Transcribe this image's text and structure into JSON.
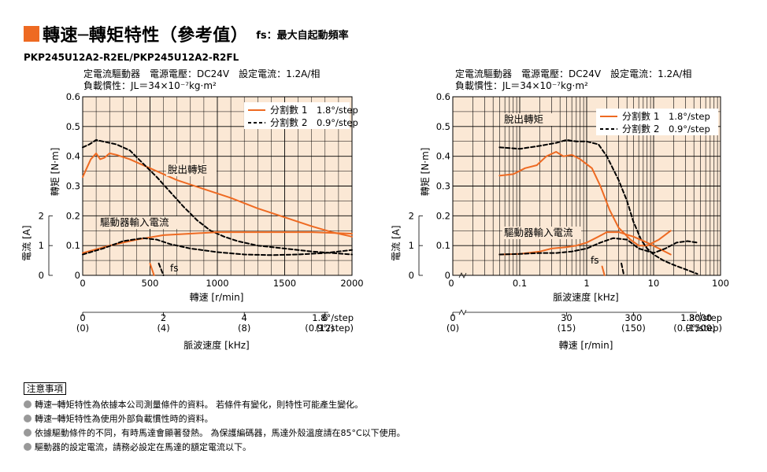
{
  "title": {
    "main": "轉速─轉矩特性（參考值）",
    "fs_note": "fs：最大自起動頻率"
  },
  "model": "PKP245U12A2-R2EL/PKP245U12A2-R2FL",
  "colors": {
    "orange": "#ee6a22",
    "bg": "#fbe8d5"
  },
  "chart_data": [
    {
      "type": "line",
      "conditions": [
        "定電流驅動器　電源電壓：DC24V　設定電流：1.2A/相",
        "負載慣性：JL＝34×10⁻⁷kg·m²"
      ],
      "xlabel": "轉速 [r/min]",
      "xlim": [
        0,
        2000
      ],
      "x_ticks": [
        "0",
        "500",
        "1000",
        "1500",
        "2000"
      ],
      "ylabel": "轉矩 [N·m]",
      "ylim": [
        0,
        0.6
      ],
      "y_ticks": [
        "0",
        "0.1",
        "0.2",
        "0.3",
        "0.4",
        "0.5",
        "0.6"
      ],
      "y2label": "電流 [A]",
      "y2_ticks": [
        "0",
        "1",
        "2"
      ],
      "legend": [
        {
          "label": "分割數 1",
          "value": "1.8°/step",
          "style": "solid"
        },
        {
          "label": "分割數 2",
          "value": "0.9°/step",
          "style": "dashed"
        }
      ],
      "annotations": {
        "pullout": "脫出轉矩",
        "current": "驅動器輸入電流",
        "fs": "fs"
      },
      "secondary_axis": {
        "label": "脈波速度 [kHz]",
        "ticks": [
          {
            "top": "0",
            "bottom": "(0)"
          },
          {
            "top": "2",
            "bottom": "(4)"
          },
          {
            "top": "4",
            "bottom": "(8)"
          },
          {
            "top": "6",
            "bottom": "(12)"
          }
        ],
        "unit_top": "1.8°/step",
        "unit_bottom": "(0.9°/step)"
      },
      "series": [
        {
          "kind": "torque",
          "style": "solid",
          "points": [
            [
              0,
              0.33
            ],
            [
              30,
              0.36
            ],
            [
              60,
              0.39
            ],
            [
              100,
              0.41
            ],
            [
              130,
              0.39
            ],
            [
              160,
              0.395
            ],
            [
              200,
              0.41
            ],
            [
              250,
              0.405
            ],
            [
              350,
              0.39
            ],
            [
              500,
              0.36
            ],
            [
              700,
              0.32
            ],
            [
              900,
              0.29
            ],
            [
              1100,
              0.26
            ],
            [
              1300,
              0.225
            ],
            [
              1500,
              0.195
            ],
            [
              1700,
              0.165
            ],
            [
              1850,
              0.145
            ],
            [
              2000,
              0.13
            ]
          ]
        },
        {
          "kind": "torque",
          "style": "dashed",
          "points": [
            [
              0,
              0.43
            ],
            [
              50,
              0.44
            ],
            [
              100,
              0.455
            ],
            [
              150,
              0.45
            ],
            [
              250,
              0.44
            ],
            [
              350,
              0.42
            ],
            [
              450,
              0.375
            ],
            [
              550,
              0.33
            ],
            [
              650,
              0.28
            ],
            [
              750,
              0.23
            ],
            [
              850,
              0.185
            ],
            [
              950,
              0.15
            ],
            [
              1050,
              0.13
            ],
            [
              1150,
              0.115
            ],
            [
              1300,
              0.1
            ],
            [
              1500,
              0.09
            ],
            [
              1700,
              0.08
            ],
            [
              1850,
              0.075
            ],
            [
              2000,
              0.07
            ]
          ]
        },
        {
          "kind": "current",
          "style": "solid",
          "points": [
            [
              0,
              0.075
            ],
            [
              200,
              0.1
            ],
            [
              400,
              0.12
            ],
            [
              600,
              0.135
            ],
            [
              800,
              0.14
            ],
            [
              1000,
              0.145
            ],
            [
              1200,
              0.145
            ],
            [
              1500,
              0.145
            ],
            [
              1700,
              0.145
            ],
            [
              2000,
              0.14
            ]
          ]
        },
        {
          "kind": "current",
          "style": "dashed",
          "points": [
            [
              0,
              0.07
            ],
            [
              150,
              0.09
            ],
            [
              300,
              0.115
            ],
            [
              450,
              0.125
            ],
            [
              550,
              0.12
            ],
            [
              650,
              0.105
            ],
            [
              800,
              0.09
            ],
            [
              1000,
              0.078
            ],
            [
              1200,
              0.07
            ],
            [
              1400,
              0.068
            ],
            [
              1600,
              0.07
            ],
            [
              1800,
              0.075
            ],
            [
              2000,
              0.085
            ]
          ]
        },
        {
          "kind": "fs",
          "style": "solid",
          "points": [
            [
              500,
              0.04
            ],
            [
              530,
              0
            ]
          ]
        },
        {
          "kind": "fs",
          "style": "dashed",
          "points": [
            [
              565,
              0.04
            ],
            [
              600,
              0
            ]
          ]
        }
      ]
    },
    {
      "type": "line",
      "xscale": "log",
      "conditions": [
        "定電流驅動器　電源電壓：DC24V　設定電流：1.2A/相",
        "負載慣性：JL＝34×10⁻⁷kg·m²"
      ],
      "xlabel": "脈波速度 [kHz]",
      "xlim": [
        0.01,
        100
      ],
      "x_ticks": [
        "0",
        "0.1",
        "1",
        "10",
        "100"
      ],
      "ylabel": "轉矩 [N·m]",
      "ylim": [
        0,
        0.6
      ],
      "y_ticks": [
        "0",
        "0.1",
        "0.2",
        "0.3",
        "0.4",
        "0.5",
        "0.6"
      ],
      "y2label": "電流 [A]",
      "y2_ticks": [
        "0",
        "1",
        "2"
      ],
      "legend": [
        {
          "label": "分割數 1",
          "value": "1.8°/step",
          "style": "solid"
        },
        {
          "label": "分割數 2",
          "value": "0.9°/step",
          "style": "dashed"
        }
      ],
      "annotations": {
        "pullout": "脫出轉矩",
        "current": "驅動器輸入電流",
        "fs": "fs"
      },
      "secondary_axis": {
        "label": "轉速 [r/min]",
        "ticks": [
          {
            "top": "0",
            "bottom": "(0)"
          },
          {
            "top": "30",
            "bottom": "(15)"
          },
          {
            "top": "300",
            "bottom": "(150)"
          },
          {
            "top": "3000",
            "bottom": "(1500)"
          }
        ],
        "unit_top": "1.8°/step",
        "unit_bottom": "(0.9°/step)"
      },
      "series": [
        {
          "kind": "torque",
          "style": "solid",
          "points": [
            [
              0.05,
              0.335
            ],
            [
              0.08,
              0.34
            ],
            [
              0.12,
              0.36
            ],
            [
              0.18,
              0.37
            ],
            [
              0.25,
              0.4
            ],
            [
              0.35,
              0.415
            ],
            [
              0.45,
              0.4
            ],
            [
              0.6,
              0.405
            ],
            [
              0.8,
              0.39
            ],
            [
              1.2,
              0.36
            ],
            [
              1.6,
              0.3
            ],
            [
              2.2,
              0.22
            ],
            [
              3,
              0.16
            ],
            [
              4.5,
              0.12
            ],
            [
              6,
              0.1
            ],
            [
              8,
              0.1
            ],
            [
              12,
              0.12
            ],
            [
              18,
              0.15
            ]
          ]
        },
        {
          "kind": "torque",
          "style": "dashed",
          "points": [
            [
              0.05,
              0.43
            ],
            [
              0.1,
              0.425
            ],
            [
              0.2,
              0.435
            ],
            [
              0.35,
              0.445
            ],
            [
              0.5,
              0.455
            ],
            [
              0.7,
              0.45
            ],
            [
              1,
              0.45
            ],
            [
              1.5,
              0.44
            ],
            [
              2,
              0.4
            ],
            [
              3,
              0.32
            ],
            [
              4,
              0.25
            ],
            [
              5,
              0.18
            ],
            [
              6.5,
              0.12
            ],
            [
              8,
              0.09
            ],
            [
              10,
              0.07
            ],
            [
              14,
              0.05
            ],
            [
              20,
              0.035
            ],
            [
              30,
              0.02
            ],
            [
              45,
              0.005
            ]
          ]
        },
        {
          "kind": "current",
          "style": "solid",
          "points": [
            [
              0.05,
              0.07
            ],
            [
              0.1,
              0.072
            ],
            [
              0.2,
              0.08
            ],
            [
              0.3,
              0.09
            ],
            [
              0.5,
              0.095
            ],
            [
              0.7,
              0.1
            ],
            [
              1,
              0.11
            ],
            [
              1.5,
              0.13
            ],
            [
              2,
              0.145
            ],
            [
              3,
              0.145
            ],
            [
              5,
              0.13
            ],
            [
              8,
              0.11
            ],
            [
              12,
              0.09
            ],
            [
              18,
              0.07
            ]
          ]
        },
        {
          "kind": "current",
          "style": "dashed",
          "points": [
            [
              0.05,
              0.07
            ],
            [
              0.1,
              0.072
            ],
            [
              0.2,
              0.075
            ],
            [
              0.35,
              0.075
            ],
            [
              0.6,
              0.08
            ],
            [
              1,
              0.09
            ],
            [
              1.6,
              0.11
            ],
            [
              2.5,
              0.125
            ],
            [
              4,
              0.12
            ],
            [
              6,
              0.09
            ],
            [
              10,
              0.075
            ],
            [
              15,
              0.09
            ],
            [
              22,
              0.11
            ],
            [
              32,
              0.115
            ],
            [
              45,
              0.11
            ]
          ]
        },
        {
          "kind": "fs",
          "style": "solid",
          "points": [
            [
              1.7,
              0.03
            ],
            [
              1.85,
              0
            ]
          ]
        },
        {
          "kind": "fs",
          "style": "dashed",
          "points": [
            [
              3.3,
              0.04
            ],
            [
              3.6,
              0
            ]
          ]
        }
      ]
    }
  ],
  "notes": {
    "header": "注意事項",
    "items": [
      "轉速─轉矩特性為依據本公司測量條件的資料。 若條件有變化，則特性可能產生變化。",
      "轉速─轉矩特性為使用外部負載慣性時的資料。",
      "依據驅動條件的不同，有時馬達會顯著發熱。 為保護編碼器，馬達外殼溫度請在85°C以下使用。",
      "驅動器的設定電流，請務必設定在馬達的額定電流以下。"
    ]
  }
}
